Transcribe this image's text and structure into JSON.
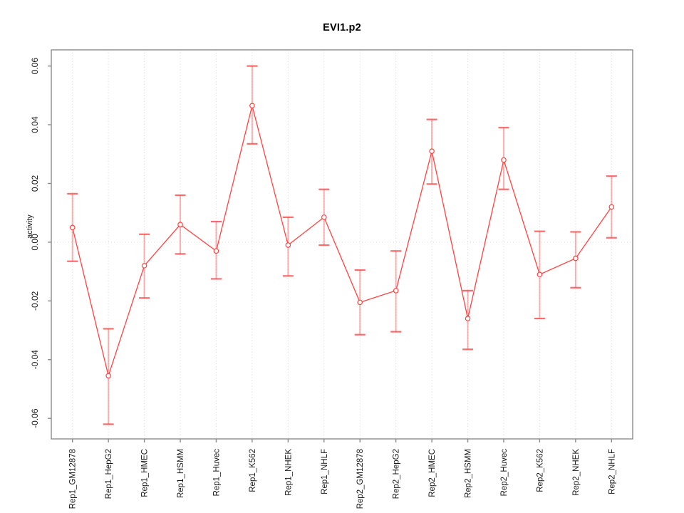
{
  "chart_data": {
    "type": "line",
    "title": "EVI1.p2",
    "xlabel": "",
    "ylabel": "activity",
    "categories": [
      "Rep1_GM12878",
      "Rep1_HepG2",
      "Rep1_HMEC",
      "Rep1_HSMM",
      "Rep1_Huvec",
      "Rep1_K562",
      "Rep1_NHEK",
      "Rep1_NHLF",
      "Rep2_GM12878",
      "Rep2_HepG2",
      "Rep2_HMEC",
      "Rep2_HSMM",
      "Rep2_Huvec",
      "Rep2_K562",
      "Rep2_NHEK",
      "Rep2_NHLF"
    ],
    "series": [
      {
        "name": "activity",
        "values": [
          0.005,
          -0.0455,
          -0.008,
          0.006,
          -0.003,
          0.0465,
          -0.001,
          0.0085,
          -0.0205,
          -0.0165,
          0.031,
          -0.026,
          0.028,
          -0.011,
          -0.0055,
          0.012
        ],
        "error_low": [
          -0.0065,
          -0.062,
          -0.019,
          -0.004,
          -0.0125,
          0.0335,
          -0.0115,
          -0.001,
          -0.0315,
          -0.0305,
          0.0198,
          -0.0365,
          0.018,
          -0.026,
          -0.0155,
          0.0015
        ],
        "error_high": [
          0.0165,
          -0.0295,
          0.0027,
          0.016,
          0.007,
          0.06,
          0.0085,
          0.018,
          -0.0095,
          -0.003,
          0.0418,
          -0.0165,
          0.039,
          0.0037,
          0.0035,
          0.0225
        ]
      }
    ],
    "yticks": [
      -0.06,
      -0.04,
      -0.02,
      0.0,
      0.02,
      0.04,
      0.06
    ],
    "ytick_labels": [
      "-0.06",
      "-0.04",
      "-0.02",
      "0.00",
      "0.02",
      "0.04",
      "0.06"
    ],
    "ylim": [
      -0.067,
      0.0655
    ],
    "grid": {
      "vertical_per_category": true,
      "horizontal_zero_line": true,
      "style": "dotted"
    },
    "legend_position": "none",
    "x_label_rotation_deg": 90,
    "y_label_rotation_deg": 90,
    "marker": "open-circle",
    "colors": {
      "line": "#ff4343",
      "marker_stroke": "#ff4343",
      "marker_fill": "#ffffff",
      "error_bar_stem": "rgba(255,70,70,0.42)",
      "error_bar_cap": "rgba(255,70,70,0.80)",
      "grid": "#d9d9d9",
      "axis_box": "#8c8c8c",
      "tick": "#8c8c8c",
      "tick_text": "#1a1a1a",
      "title_text": "#000000"
    }
  }
}
